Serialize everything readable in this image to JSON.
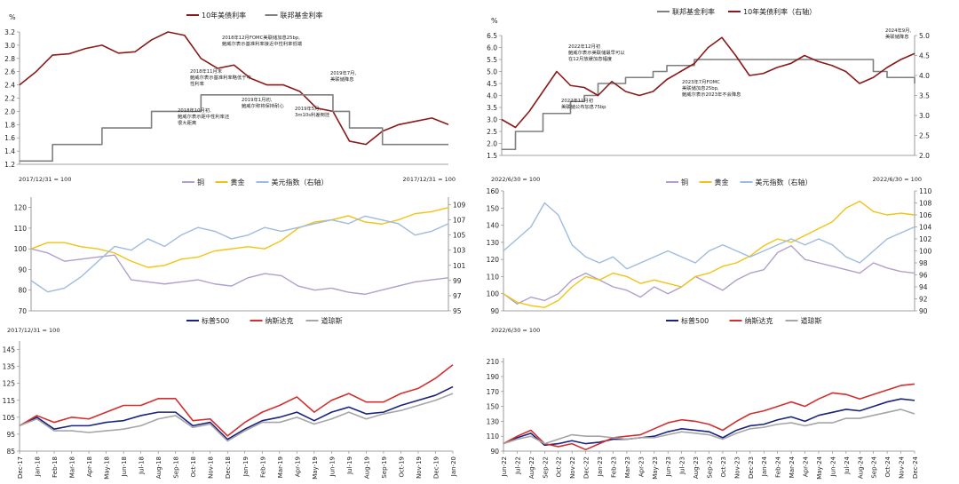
{
  "chart_data": [
    {
      "type": "line",
      "title": "",
      "unit_label": "%",
      "ylim": [
        1.2,
        3.2
      ],
      "yticks": [
        1.2,
        1.4,
        1.6,
        1.8,
        2.0,
        2.2,
        2.4,
        2.6,
        2.8,
        3.0,
        3.2
      ],
      "ytick_labels": [
        "1.2",
        "1.4",
        "1.6",
        "1.8",
        "2.0",
        "2.2",
        "2.4",
        "2.6",
        "2.8",
        "3.0",
        "3.2"
      ],
      "x_count": 27,
      "legend": [
        {
          "name": "10年美债利率",
          "color": "#8b1a1a"
        },
        {
          "name": "联邦基金利率",
          "color": "#7f7f7f"
        }
      ],
      "series": [
        {
          "name": "10年美债利率",
          "color": "#8b1a1a",
          "width": 1.6,
          "values": [
            2.4,
            2.6,
            2.85,
            2.87,
            2.95,
            3.0,
            2.88,
            2.9,
            3.08,
            3.2,
            3.15,
            2.8,
            2.65,
            2.7,
            2.5,
            2.4,
            2.4,
            2.3,
            2.05,
            2.0,
            1.55,
            1.5,
            1.7,
            1.8,
            1.85,
            1.9,
            1.8
          ]
        },
        {
          "name": "联邦基金利率",
          "color": "#7f7f7f",
          "width": 1.6,
          "step": true,
          "values": [
            1.25,
            1.25,
            1.5,
            1.5,
            1.5,
            1.75,
            1.75,
            1.75,
            2.0,
            2.0,
            2.0,
            2.25,
            2.25,
            2.25,
            2.25,
            2.25,
            2.25,
            2.25,
            2.25,
            2.0,
            1.75,
            1.75,
            1.5,
            1.5,
            1.5,
            1.5,
            1.5
          ]
        }
      ],
      "annotations": [
        "2018年12月FOMC美联储加息25bp,",
        "鲍威尔表示基准利率接近中性利率低端",
        "2018年11月末",
        "鲍威尔表示基准利率略低于中",
        "性利率",
        "2019年7月,",
        "美联储降息",
        "2019年1月初,",
        "鲍威尔称将保持耐心",
        "2019年5月,",
        "3m10s利差倒挂",
        "2018年10月初,",
        "鲍威尔表示距中性利率还",
        "很大距离"
      ]
    },
    {
      "type": "line",
      "title": "",
      "unit_label": "%",
      "ylim": [
        1.5,
        6.5
      ],
      "yticks": [
        1.5,
        2.0,
        2.5,
        3.0,
        3.5,
        4.0,
        4.5,
        5.0,
        5.5,
        6.0,
        6.5
      ],
      "ytick_labels": [
        "1.5",
        "2.0",
        "2.5",
        "3.0",
        "3.5",
        "4.0",
        "4.5",
        "5.0",
        "5.5",
        "6.0",
        "6.5"
      ],
      "y2lim": [
        2.0,
        5.0
      ],
      "y2ticks": [
        2.0,
        2.5,
        3.0,
        3.5,
        4.0,
        4.5,
        5.0
      ],
      "y2tick_labels": [
        "2.0",
        "2.5",
        "3.0",
        "3.5",
        "4.0",
        "4.5",
        "5.0"
      ],
      "x_count": 31,
      "legend": [
        {
          "name": "联邦基金利率",
          "color": "#7f7f7f"
        },
        {
          "name": "10年美债利率（右轴）",
          "color": "#8b1a1a"
        }
      ],
      "series": [
        {
          "name": "联邦基金利率",
          "color": "#7f7f7f",
          "width": 1.6,
          "step": true,
          "axis": "left",
          "values": [
            1.75,
            2.5,
            2.5,
            3.25,
            3.25,
            3.75,
            4.0,
            4.5,
            4.5,
            4.75,
            4.75,
            5.0,
            5.25,
            5.25,
            5.5,
            5.5,
            5.5,
            5.5,
            5.5,
            5.5,
            5.5,
            5.5,
            5.5,
            5.5,
            5.5,
            5.5,
            5.5,
            5.0,
            4.75,
            4.75,
            4.5
          ]
        },
        {
          "name": "10年美债利率（右轴）",
          "color": "#8b1a1a",
          "width": 1.6,
          "axis": "right",
          "values": [
            2.9,
            2.7,
            3.1,
            3.6,
            4.1,
            3.75,
            3.7,
            3.5,
            3.85,
            3.6,
            3.5,
            3.6,
            3.9,
            4.1,
            4.3,
            4.7,
            4.95,
            4.5,
            4.0,
            4.05,
            4.2,
            4.3,
            4.5,
            4.35,
            4.25,
            4.1,
            3.8,
            3.95,
            4.2,
            4.4,
            4.55
          ]
        }
      ],
      "annotations": [
        "2022年12月初",
        "鲍威尔表示美联储最早可以",
        "在12月放缓加息幅度",
        "2022年11月初",
        "美联储公布加息75bp",
        "2023年7月FOMC",
        "美联储加息25bp,",
        "鲍威尔表示2023年不会降息",
        "2024年9月,",
        "美联储降息"
      ]
    },
    {
      "type": "line",
      "title": "",
      "index_label": "2017/12/31 = 100",
      "index_label_right": "2017/12/31 = 100",
      "ylim": [
        70,
        125
      ],
      "yticks": [
        70,
        80,
        90,
        100,
        110,
        120
      ],
      "ytick_labels": [
        "70",
        "80",
        "90",
        "100",
        "110",
        "120"
      ],
      "y2lim": [
        95,
        110
      ],
      "y2ticks": [
        95,
        97,
        99,
        101,
        103,
        105,
        107,
        109
      ],
      "y2tick_labels": [
        "95",
        "97",
        "99",
        "101",
        "103",
        "105",
        "107",
        "109"
      ],
      "x_count": 26,
      "legend": [
        {
          "name": "铜",
          "color": "#b09fcc"
        },
        {
          "name": "黄金",
          "color": "#f2c314"
        },
        {
          "name": "美元指数（右轴）",
          "color": "#9dbbe0"
        }
      ],
      "series": [
        {
          "name": "铜",
          "color": "#b09fcc",
          "width": 1.4,
          "axis": "left",
          "values": [
            100,
            98,
            94,
            95,
            96,
            97,
            85,
            84,
            83,
            84,
            85,
            83,
            82,
            86,
            88,
            87,
            82,
            80,
            81,
            79,
            78,
            80,
            82,
            84,
            85,
            86
          ]
        },
        {
          "name": "黄金",
          "color": "#f2c314",
          "width": 1.4,
          "axis": "left",
          "values": [
            100,
            103,
            103,
            101,
            100,
            98,
            94,
            91,
            92,
            95,
            96,
            99,
            100,
            101,
            100,
            104,
            110,
            113,
            114,
            116,
            113,
            112,
            114,
            117,
            118,
            120
          ]
        },
        {
          "name": "美元指数（右轴）",
          "color": "#9dbbe0",
          "width": 1.4,
          "axis": "right",
          "values": [
            99.0,
            97.5,
            98.0,
            99.5,
            101.5,
            103.5,
            103.0,
            104.5,
            103.5,
            105.0,
            106.0,
            105.5,
            104.5,
            105.0,
            106.0,
            105.5,
            106.0,
            106.5,
            107.0,
            106.5,
            107.5,
            107.0,
            106.5,
            105.0,
            105.5,
            106.5
          ]
        }
      ]
    },
    {
      "type": "line",
      "title": "",
      "index_label": "2022/6/30 = 100",
      "index_label_right": "2022/6/30 = 100",
      "ylim": [
        90,
        160
      ],
      "yticks": [
        90,
        100,
        110,
        120,
        130,
        140,
        150,
        160
      ],
      "ytick_labels": [
        "90",
        "100",
        "110",
        "120",
        "130",
        "140",
        "150",
        "160"
      ],
      "y2lim": [
        90,
        110
      ],
      "y2ticks": [
        90,
        92,
        94,
        96,
        98,
        100,
        102,
        104,
        106,
        108,
        110
      ],
      "y2tick_labels": [
        "90",
        "92",
        "94",
        "96",
        "98",
        "100",
        "102",
        "104",
        "106",
        "108",
        "110"
      ],
      "x_count": 31,
      "legend": [
        {
          "name": "铜",
          "color": "#b09fcc"
        },
        {
          "name": "黄金",
          "color": "#f2c314"
        },
        {
          "name": "美元指数（右轴）",
          "color": "#9dbbe0"
        }
      ],
      "series": [
        {
          "name": "铜",
          "color": "#b09fcc",
          "width": 1.4,
          "axis": "left",
          "values": [
            100,
            94,
            98,
            96,
            100,
            108,
            112,
            108,
            104,
            102,
            98,
            104,
            100,
            104,
            110,
            106,
            102,
            108,
            112,
            114,
            124,
            128,
            120,
            118,
            116,
            114,
            112,
            118,
            115,
            113,
            112
          ]
        },
        {
          "name": "黄金",
          "color": "#f2c314",
          "width": 1.4,
          "axis": "left",
          "values": [
            100,
            95,
            93,
            92,
            96,
            104,
            110,
            108,
            112,
            110,
            106,
            108,
            106,
            104,
            110,
            112,
            116,
            118,
            122,
            128,
            132,
            130,
            134,
            138,
            142,
            150,
            154,
            148,
            146,
            147,
            146
          ]
        },
        {
          "name": "美元指数（右轴）",
          "color": "#9dbbe0",
          "width": 1.4,
          "axis": "right",
          "values": [
            100,
            102,
            104,
            108,
            106,
            101,
            99,
            98,
            99,
            97,
            98,
            99,
            100,
            99,
            98,
            100,
            101,
            100,
            99,
            100,
            101,
            102,
            101,
            102,
            101,
            99,
            98,
            100,
            102,
            103,
            104
          ]
        }
      ]
    },
    {
      "type": "line",
      "title": "",
      "index_label": "2017/12/31 = 100",
      "ylim": [
        85,
        150
      ],
      "yticks": [
        85,
        95,
        105,
        115,
        125,
        135,
        145
      ],
      "ytick_labels": [
        "85",
        "95",
        "105",
        "115",
        "125",
        "135",
        "145"
      ],
      "x_labels": [
        "Dec-17",
        "Jan-18",
        "Feb-18",
        "Mar-18",
        "Apr-18",
        "May-18",
        "Jun-18",
        "Jul-18",
        "Aug-18",
        "Sep-18",
        "Oct-18",
        "Nov-18",
        "Dec-18",
        "Jan-19",
        "Feb-19",
        "Mar-19",
        "Apr-19",
        "May-19",
        "Jun-19",
        "Jul-19",
        "Aug-19",
        "Sep-19",
        "Oct-19",
        "Nov-19",
        "Dec-19",
        "Jan-20"
      ],
      "legend": [
        {
          "name": "标普500",
          "color": "#1a237e"
        },
        {
          "name": "纳斯达克",
          "color": "#d32f2f"
        },
        {
          "name": "道琼斯",
          "color": "#a6a6a6"
        }
      ],
      "series": [
        {
          "name": "标普500",
          "color": "#1a237e",
          "width": 1.6,
          "values": [
            100,
            105,
            98,
            100,
            100,
            102,
            103,
            106,
            108,
            108,
            100,
            102,
            92,
            98,
            103,
            105,
            108,
            103,
            108,
            111,
            107,
            108,
            112,
            115,
            118,
            123
          ]
        },
        {
          "name": "纳斯达克",
          "color": "#d32f2f",
          "width": 1.6,
          "values": [
            100,
            106,
            102,
            105,
            104,
            108,
            112,
            112,
            116,
            116,
            103,
            104,
            94,
            102,
            108,
            112,
            117,
            108,
            115,
            119,
            114,
            114,
            119,
            122,
            128,
            136
          ]
        },
        {
          "name": "道琼斯",
          "color": "#a6a6a6",
          "width": 1.6,
          "values": [
            100,
            104,
            97,
            97,
            96,
            97,
            98,
            100,
            104,
            106,
            99,
            101,
            91,
            97,
            102,
            102,
            105,
            101,
            104,
            108,
            104,
            107,
            109,
            112,
            115,
            119
          ]
        }
      ]
    },
    {
      "type": "line",
      "title": "",
      "index_label": "2022/6/30 = 100",
      "ylim": [
        90,
        215
      ],
      "yticks": [
        90,
        110,
        130,
        150,
        170,
        190,
        210
      ],
      "ytick_labels": [
        "90",
        "110",
        "130",
        "150",
        "170",
        "190",
        "210"
      ],
      "x_labels": [
        "Jun-22",
        "Jul-22",
        "Aug-22",
        "Sep-22",
        "Oct-22",
        "Nov-22",
        "Dec-22",
        "Jan-23",
        "Feb-23",
        "Mar-23",
        "Apr-23",
        "May-23",
        "Jun-23",
        "Jul-23",
        "Aug-23",
        "Sep-23",
        "Oct-23",
        "Nov-23",
        "Dec-23",
        "Jan-24",
        "Feb-24",
        "Mar-24",
        "Apr-24",
        "May-24",
        "Jun-24",
        "Jul-24",
        "Aug-24",
        "Sep-24",
        "Oct-24",
        "Nov-24",
        "Dec-24"
      ],
      "legend": [
        {
          "name": "标普500",
          "color": "#1a237e"
        },
        {
          "name": "纳斯达克",
          "color": "#d32f2f"
        },
        {
          "name": "道琼斯",
          "color": "#a6a6a6"
        }
      ],
      "series": [
        {
          "name": "标普500",
          "color": "#1a237e",
          "width": 1.6,
          "values": [
            100,
            108,
            114,
            98,
            100,
            104,
            100,
            102,
            106,
            106,
            108,
            110,
            116,
            120,
            118,
            116,
            108,
            118,
            124,
            126,
            132,
            136,
            130,
            138,
            142,
            146,
            144,
            150,
            156,
            160,
            158
          ]
        },
        {
          "name": "纳斯达克",
          "color": "#d32f2f",
          "width": 1.6,
          "values": [
            100,
            110,
            118,
            100,
            96,
            100,
            92,
            100,
            108,
            110,
            112,
            120,
            128,
            132,
            130,
            126,
            118,
            130,
            140,
            144,
            150,
            156,
            150,
            160,
            168,
            166,
            160,
            166,
            172,
            178,
            180
          ]
        },
        {
          "name": "道琼斯",
          "color": "#a6a6a6",
          "width": 1.6,
          "values": [
            100,
            106,
            110,
            100,
            106,
            112,
            110,
            110,
            108,
            106,
            108,
            108,
            112,
            116,
            114,
            112,
            106,
            114,
            120,
            122,
            126,
            128,
            124,
            128,
            128,
            134,
            134,
            138,
            142,
            146,
            140
          ]
        }
      ]
    }
  ]
}
